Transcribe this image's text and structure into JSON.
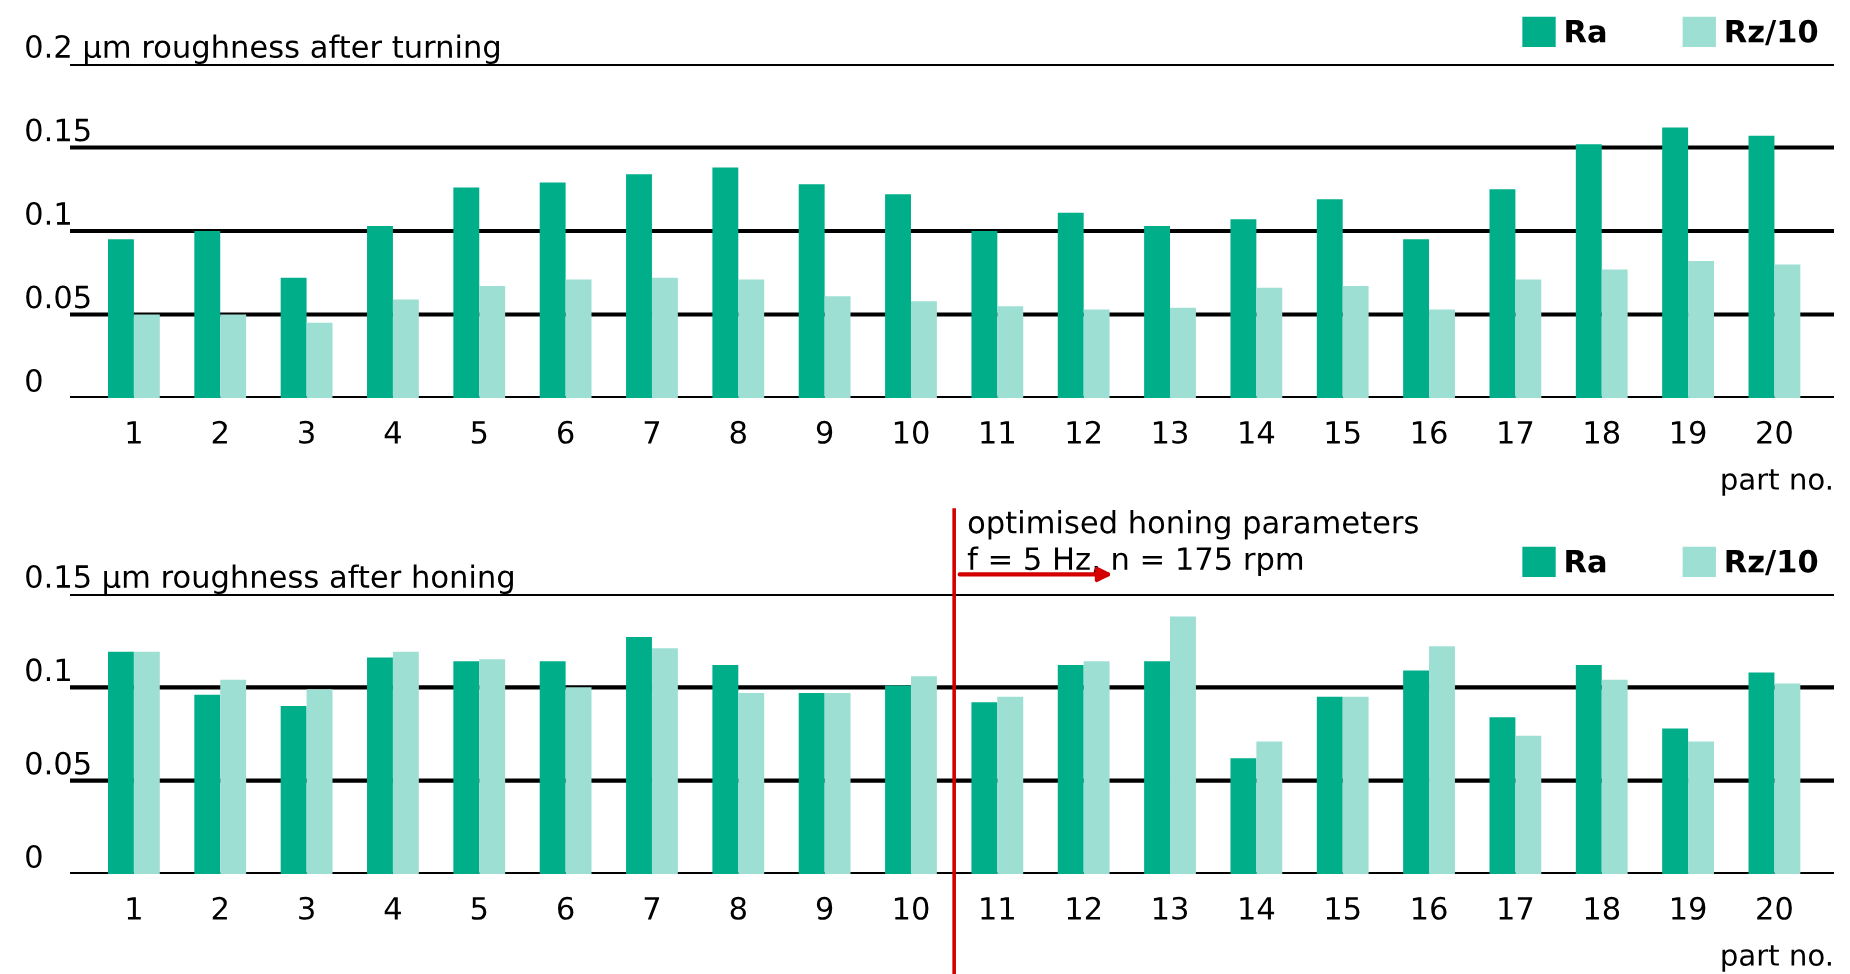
{
  "chart_data": [
    {
      "type": "bar",
      "ylabel": "µm roughness after turning",
      "xlabel": "part no.",
      "categories": [
        "1",
        "2",
        "3",
        "4",
        "5",
        "6",
        "7",
        "8",
        "9",
        "10",
        "11",
        "12",
        "13",
        "14",
        "15",
        "16",
        "17",
        "18",
        "19",
        "20"
      ],
      "series": [
        {
          "name": "Ra",
          "color": "#00ae8a",
          "values": [
            0.095,
            0.1,
            0.072,
            0.103,
            0.126,
            0.129,
            0.134,
            0.138,
            0.128,
            0.122,
            0.1,
            0.111,
            0.103,
            0.107,
            0.119,
            0.095,
            0.125,
            0.152,
            0.162,
            0.157
          ]
        },
        {
          "name": "Rz/10",
          "color": "#9ddfd3",
          "values": [
            0.05,
            0.05,
            0.045,
            0.059,
            0.067,
            0.071,
            0.072,
            0.071,
            0.061,
            0.058,
            0.055,
            0.053,
            0.054,
            0.066,
            0.067,
            0.053,
            0.071,
            0.077,
            0.082,
            0.08
          ]
        }
      ],
      "ylim": [
        0,
        0.2
      ],
      "yticks": [
        0,
        0.05,
        0.1,
        0.15,
        0.2
      ],
      "grid": "y",
      "legend": "top right"
    },
    {
      "type": "bar",
      "ylabel": "µm roughness after honing",
      "xlabel": "part no.",
      "categories": [
        "1",
        "2",
        "3",
        "4",
        "5",
        "6",
        "7",
        "8",
        "9",
        "10",
        "11",
        "12",
        "13",
        "14",
        "15",
        "16",
        "17",
        "18",
        "19",
        "20"
      ],
      "series": [
        {
          "name": "Ra",
          "color": "#00ae8a",
          "values": [
            0.119,
            0.096,
            0.09,
            0.116,
            0.114,
            0.114,
            0.127,
            0.112,
            0.097,
            0.101,
            0.092,
            0.112,
            0.114,
            0.062,
            0.095,
            0.109,
            0.084,
            0.112,
            0.078,
            0.108
          ]
        },
        {
          "name": "Rz/10",
          "color": "#9ddfd3",
          "values": [
            0.119,
            0.104,
            0.099,
            0.119,
            0.115,
            0.1,
            0.121,
            0.097,
            0.097,
            0.106,
            0.095,
            0.114,
            0.138,
            0.071,
            0.095,
            0.122,
            0.074,
            0.104,
            0.071,
            0.102
          ]
        }
      ],
      "ylim": [
        0,
        0.15
      ],
      "yticks": [
        0,
        0.05,
        0.1,
        0.15
      ],
      "grid": "y",
      "legend": "top right",
      "ref_lines": [
        {
          "axis": "x",
          "value": "11",
          "label": "optimised honing parameters\nf = 5 Hz, n = 175 rpm",
          "color": "#d40000"
        }
      ]
    }
  ]
}
